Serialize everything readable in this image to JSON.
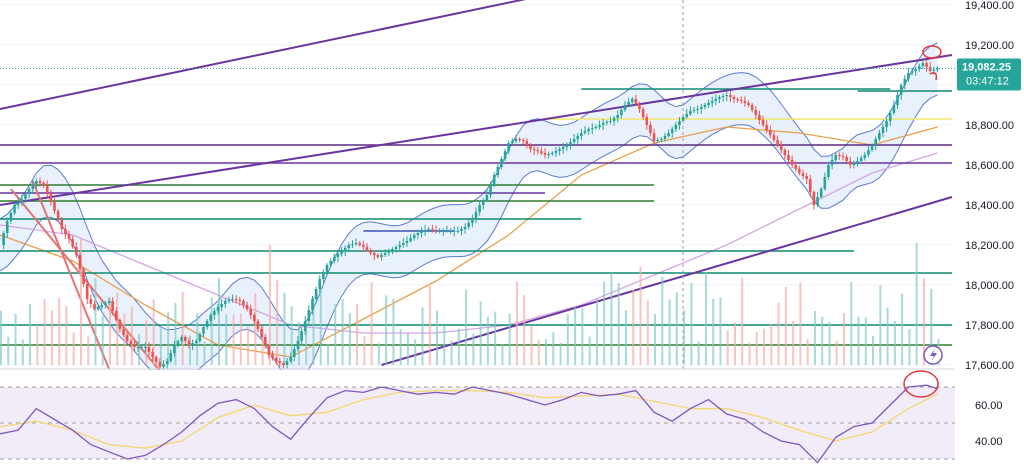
{
  "chart_data": [
    {
      "type": "candlestick",
      "panel": "price",
      "y_scale": "linear",
      "ylim": [
        17600,
        19400
      ],
      "y_ticks": [
        "19,400.00",
        "19,200.00",
        "19,000.00",
        "18,800.00",
        "18,600.00",
        "18,400.00",
        "18,200.00",
        "18,000.00",
        "17,800.00",
        "17,600.00"
      ],
      "last_price_label": "19,082.25",
      "countdown_label": "03:47:12",
      "colors": {
        "up": "#26a69a",
        "down": "#ef5350",
        "price_tag": "#26a69a",
        "bands": "#5b7bd5",
        "band_fill": "#dbe7fb",
        "ma_slow": "#d6a5e8",
        "ma_mid": "#e9a14b"
      },
      "close_path": [
        [
          0,
          18200
        ],
        [
          2,
          18320
        ],
        [
          4,
          18400
        ],
        [
          6,
          18430
        ],
        [
          8,
          18480
        ],
        [
          10,
          18520
        ],
        [
          12,
          18500
        ],
        [
          13,
          18460
        ],
        [
          15,
          18370
        ],
        [
          17,
          18280
        ],
        [
          19,
          18230
        ],
        [
          21,
          18150
        ],
        [
          22,
          18080
        ],
        [
          24,
          17930
        ],
        [
          26,
          17880
        ],
        [
          28,
          17900
        ],
        [
          30,
          17920
        ],
        [
          31,
          17870
        ],
        [
          33,
          17780
        ],
        [
          35,
          17720
        ],
        [
          37,
          17690
        ],
        [
          40,
          17690
        ],
        [
          42,
          17640
        ],
        [
          44,
          17590
        ],
        [
          46,
          17620
        ],
        [
          48,
          17700
        ],
        [
          50,
          17740
        ],
        [
          52,
          17700
        ],
        [
          54,
          17720
        ],
        [
          56,
          17790
        ],
        [
          58,
          17850
        ],
        [
          60,
          17890
        ],
        [
          62,
          17920
        ],
        [
          64,
          17930
        ],
        [
          66,
          17920
        ],
        [
          68,
          17880
        ],
        [
          70,
          17820
        ],
        [
          72,
          17740
        ],
        [
          74,
          17650
        ],
        [
          76,
          17620
        ],
        [
          78,
          17600
        ],
        [
          80,
          17640
        ],
        [
          82,
          17720
        ],
        [
          84,
          17820
        ],
        [
          86,
          17930
        ],
        [
          88,
          18030
        ],
        [
          90,
          18100
        ],
        [
          92,
          18140
        ],
        [
          94,
          18170
        ],
        [
          96,
          18200
        ],
        [
          98,
          18210
        ],
        [
          100,
          18190
        ],
        [
          102,
          18160
        ],
        [
          104,
          18140
        ],
        [
          106,
          18160
        ],
        [
          108,
          18180
        ],
        [
          110,
          18200
        ],
        [
          112,
          18220
        ],
        [
          114,
          18250
        ],
        [
          116,
          18270
        ],
        [
          118,
          18280
        ],
        [
          120,
          18270
        ],
        [
          122,
          18270
        ],
        [
          124,
          18270
        ],
        [
          126,
          18270
        ],
        [
          128,
          18290
        ],
        [
          130,
          18330
        ],
        [
          132,
          18400
        ],
        [
          134,
          18450
        ],
        [
          136,
          18550
        ],
        [
          138,
          18630
        ],
        [
          140,
          18710
        ],
        [
          142,
          18730
        ],
        [
          144,
          18720
        ],
        [
          146,
          18680
        ],
        [
          148,
          18670
        ],
        [
          150,
          18650
        ],
        [
          152,
          18660
        ],
        [
          154,
          18680
        ],
        [
          156,
          18700
        ],
        [
          158,
          18730
        ],
        [
          160,
          18760
        ],
        [
          162,
          18780
        ],
        [
          164,
          18790
        ],
        [
          166,
          18810
        ],
        [
          168,
          18820
        ],
        [
          170,
          18850
        ],
        [
          172,
          18900
        ],
        [
          174,
          18930
        ],
        [
          176,
          18880
        ],
        [
          178,
          18800
        ],
        [
          180,
          18720
        ],
        [
          182,
          18730
        ],
        [
          184,
          18760
        ],
        [
          186,
          18800
        ],
        [
          188,
          18840
        ],
        [
          190,
          18870
        ],
        [
          192,
          18880
        ],
        [
          194,
          18900
        ],
        [
          196,
          18920
        ],
        [
          198,
          18940
        ],
        [
          200,
          18950
        ],
        [
          202,
          18930
        ],
        [
          204,
          18920
        ],
        [
          206,
          18900
        ],
        [
          208,
          18850
        ],
        [
          210,
          18800
        ],
        [
          212,
          18750
        ],
        [
          214,
          18700
        ],
        [
          216,
          18650
        ],
        [
          218,
          18600
        ],
        [
          220,
          18560
        ],
        [
          222,
          18530
        ],
        [
          224,
          18400
        ],
        [
          226,
          18480
        ],
        [
          228,
          18600
        ],
        [
          230,
          18650
        ],
        [
          232,
          18640
        ],
        [
          234,
          18600
        ],
        [
          236,
          18620
        ],
        [
          238,
          18650
        ],
        [
          240,
          18700
        ],
        [
          242,
          18760
        ],
        [
          244,
          18820
        ],
        [
          246,
          18900
        ],
        [
          248,
          19000
        ],
        [
          250,
          19060
        ],
        [
          252,
          19080
        ],
        [
          254,
          19110
        ],
        [
          256,
          19070
        ],
        [
          258,
          19082.25
        ]
      ],
      "horizontal_levels": [
        {
          "price": 18980,
          "color": "#0f8a73",
          "from": 160,
          "to": 245
        },
        {
          "price": 18970,
          "color": "#0f8a73",
          "from": 236,
          "to": 262
        },
        {
          "price": 18830,
          "color": "#f2e86a",
          "from": 150,
          "to": 262
        },
        {
          "price": 18700,
          "color": "#5b2c83",
          "from": 0,
          "to": 262
        },
        {
          "price": 18610,
          "color": "#6a35a1",
          "from": 0,
          "to": 262
        },
        {
          "price": 18500,
          "color": "#2e7d32",
          "from": 0,
          "to": 180
        },
        {
          "price": 18460,
          "color": "#6a35a1",
          "from": 0,
          "to": 150
        },
        {
          "price": 18420,
          "color": "#2e7d32",
          "from": 0,
          "to": 180
        },
        {
          "price": 18330,
          "color": "#0f8a73",
          "from": 0,
          "to": 160
        },
        {
          "price": 18270,
          "color": "#3f51b5",
          "from": 100,
          "to": 125
        },
        {
          "price": 18170,
          "color": "#0f8a73",
          "from": 0,
          "to": 235
        },
        {
          "price": 18060,
          "color": "#0f8a73",
          "from": 0,
          "to": 262
        },
        {
          "price": 17800,
          "color": "#0f8a73",
          "from": 0,
          "to": 262
        },
        {
          "price": 17700,
          "color": "#2e7d32",
          "from": 0,
          "to": 262
        }
      ],
      "trend_lines": [
        {
          "color": "#6a35a1",
          "points": [
            [
              0,
              18880
            ],
            [
              150,
              19450
            ]
          ]
        },
        {
          "color": "#6a35a1",
          "points": [
            [
              0,
              18400
            ],
            [
              262,
              19150
            ]
          ]
        },
        {
          "color": "#6a35a1",
          "points": [
            [
              105,
              17600
            ],
            [
              262,
              18440
            ]
          ]
        },
        {
          "color": "#e57373",
          "points": [
            [
              3,
              18480
            ],
            [
              44,
              17570
            ]
          ]
        },
        {
          "color": "#e57373",
          "points": [
            [
              9,
              18520
            ],
            [
              30,
              17580
            ]
          ]
        }
      ],
      "ma_slow": [
        [
          0,
          18300
        ],
        [
          20,
          18250
        ],
        [
          40,
          18100
        ],
        [
          60,
          17950
        ],
        [
          80,
          17800
        ],
        [
          100,
          17760
        ],
        [
          120,
          17760
        ],
        [
          140,
          17800
        ],
        [
          160,
          17900
        ],
        [
          180,
          18050
        ],
        [
          200,
          18200
        ],
        [
          220,
          18380
        ],
        [
          240,
          18560
        ],
        [
          258,
          18660
        ]
      ],
      "ma_mid": [
        [
          0,
          18250
        ],
        [
          20,
          18120
        ],
        [
          40,
          17900
        ],
        [
          60,
          17700
        ],
        [
          80,
          17640
        ],
        [
          100,
          17830
        ],
        [
          120,
          18020
        ],
        [
          140,
          18250
        ],
        [
          160,
          18550
        ],
        [
          180,
          18710
        ],
        [
          200,
          18790
        ],
        [
          220,
          18760
        ],
        [
          240,
          18700
        ],
        [
          258,
          18790
        ]
      ],
      "band_offset": 130
    },
    {
      "type": "line",
      "panel": "oscillator",
      "ylim": [
        25,
        75
      ],
      "y_ticks": [
        "60.00",
        "40.00"
      ],
      "levels": [
        70,
        50,
        30
      ],
      "colors": {
        "main": "#7e57c2",
        "signal": "#f5d76e",
        "fill": "#ede7f6"
      },
      "series": [
        {
          "values": [
            [
              0,
              44
            ],
            [
              5,
              46
            ],
            [
              10,
              58
            ],
            [
              15,
              52
            ],
            [
              20,
              46
            ],
            [
              25,
              38
            ],
            [
              30,
              34
            ],
            [
              35,
              30
            ],
            [
              40,
              32
            ],
            [
              45,
              38
            ],
            [
              50,
              45
            ],
            [
              55,
              54
            ],
            [
              60,
              61
            ],
            [
              65,
              63
            ],
            [
              70,
              58
            ],
            [
              75,
              48
            ],
            [
              80,
              41
            ],
            [
              85,
              53
            ],
            [
              90,
              64
            ],
            [
              95,
              68
            ],
            [
              100,
              67
            ],
            [
              105,
              70
            ],
            [
              110,
              68
            ],
            [
              115,
              66
            ],
            [
              120,
              67
            ],
            [
              125,
              66
            ],
            [
              130,
              70
            ],
            [
              135,
              68
            ],
            [
              140,
              66
            ],
            [
              145,
              63
            ],
            [
              150,
              60
            ],
            [
              155,
              63
            ],
            [
              160,
              67
            ],
            [
              165,
              65
            ],
            [
              170,
              66
            ],
            [
              175,
              68
            ],
            [
              180,
              56
            ],
            [
              185,
              51
            ],
            [
              190,
              58
            ],
            [
              195,
              63
            ],
            [
              200,
              55
            ],
            [
              205,
              52
            ],
            [
              210,
              45
            ],
            [
              215,
              40
            ],
            [
              220,
              38
            ],
            [
              225,
              28
            ],
            [
              230,
              42
            ],
            [
              235,
              48
            ],
            [
              240,
              50
            ],
            [
              245,
              60
            ],
            [
              250,
              70
            ],
            [
              255,
              71
            ],
            [
              258,
              69
            ]
          ]
        },
        {
          "values": [
            [
              0,
              48
            ],
            [
              10,
              51
            ],
            [
              20,
              46
            ],
            [
              30,
              38
            ],
            [
              40,
              36
            ],
            [
              50,
              40
            ],
            [
              60,
              53
            ],
            [
              70,
              60
            ],
            [
              80,
              54
            ],
            [
              90,
              56
            ],
            [
              100,
              63
            ],
            [
              110,
              67
            ],
            [
              120,
              68
            ],
            [
              130,
              68
            ],
            [
              140,
              67
            ],
            [
              150,
              64
            ],
            [
              160,
              65
            ],
            [
              170,
              66
            ],
            [
              180,
              62
            ],
            [
              190,
              58
            ],
            [
              200,
              58
            ],
            [
              210,
              53
            ],
            [
              220,
              46
            ],
            [
              230,
              40
            ],
            [
              240,
              45
            ],
            [
              250,
              58
            ],
            [
              258,
              66
            ]
          ]
        }
      ]
    }
  ]
}
